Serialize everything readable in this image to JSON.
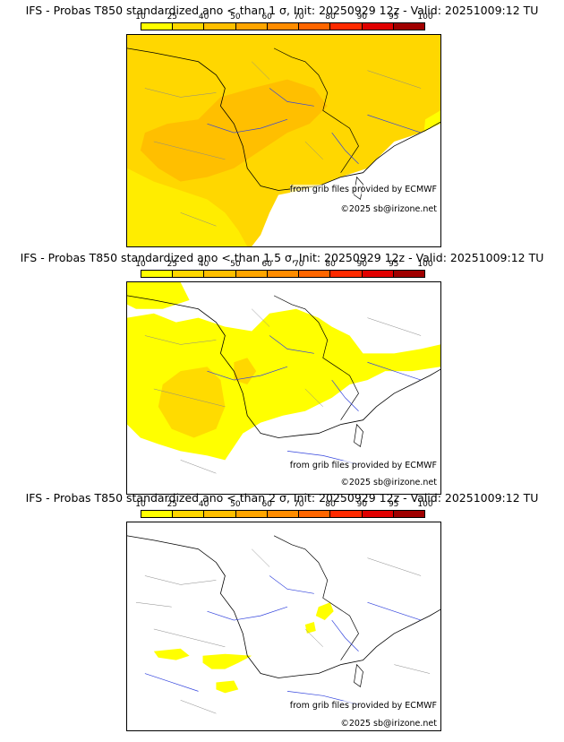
{
  "colorbar": {
    "ticks": [
      "10",
      "25",
      "40",
      "50",
      "60",
      "70",
      "80",
      "90",
      "95",
      "100"
    ],
    "colors": [
      "#ffff00",
      "#ffd700",
      "#ffbf00",
      "#ffa500",
      "#ff8c00",
      "#ff6600",
      "#ff2a00",
      "#e00000",
      "#a00000",
      "#600000"
    ]
  },
  "panels": [
    {
      "title": "IFS - Probas T850  standardized ano < than 1 σ, Init: 20250929 12z - Valid: 20251009:12 TU",
      "source_credit": "from grib files provided by ECMWF",
      "copyright": "©2025 sb@irizone.net"
    },
    {
      "title": "IFS - Probas T850  standardized ano < than 1.5 σ, Init: 20250929 12z - Valid: 20251009:12 TU",
      "source_credit": "from grib files provided by ECMWF",
      "copyright": "©2025 sb@irizone.net"
    },
    {
      "title": "IFS - Probas T850  standardized ano < than 2 σ, Init: 20250929 12z - Valid: 20251009:12 TU",
      "source_credit": "from grib files provided by ECMWF",
      "copyright": "©2025 sb@irizone.net"
    }
  ]
}
